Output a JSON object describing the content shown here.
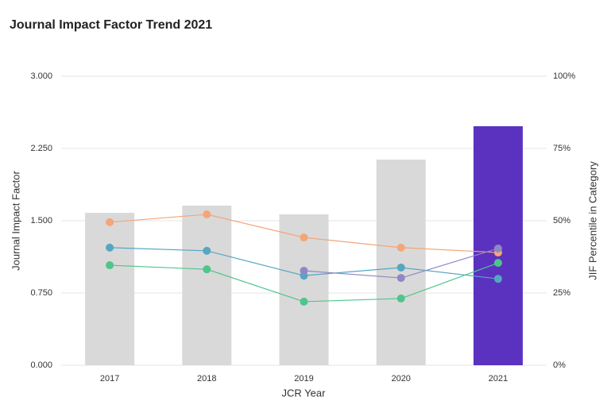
{
  "chart_data": {
    "type": "bar",
    "title": "Journal Impact Factor Trend 2021",
    "x_label": "JCR Year",
    "y_label": "Journal Impact Factor",
    "y2_label": "JIF Percentile in Category",
    "categories": [
      "2017",
      "2018",
      "2019",
      "2020",
      "2021"
    ],
    "values": [
      1.582,
      1.657,
      1.566,
      2.135,
      2.481
    ],
    "colors": [
      "#d9d9d9",
      "#d9d9d9",
      "#d9d9d9",
      "#d9d9d9",
      "#5b31c0"
    ],
    "ylim": [
      0,
      3
    ],
    "yticks": [
      {
        "value": 0,
        "label": "0.000"
      },
      {
        "value": 0.75,
        "label": "0.750"
      },
      {
        "value": 1.5,
        "label": "1.500"
      },
      {
        "value": 2.25,
        "label": "2.250"
      },
      {
        "value": 3,
        "label": "3.000"
      }
    ],
    "y2lim": [
      0,
      100
    ],
    "y2ticks": [
      {
        "value": 0,
        "label": "0%"
      },
      {
        "value": 25,
        "label": "25%"
      },
      {
        "value": 50,
        "label": "50%"
      },
      {
        "value": 75,
        "label": "75%"
      },
      {
        "value": 100,
        "label": "100%"
      }
    ],
    "grid": true,
    "series": [
      {
        "type": "line",
        "axis": "y2",
        "color": "#f4a57a",
        "values": [
          49.5,
          52.2,
          44.2,
          40.7,
          39.0
        ]
      },
      {
        "type": "line",
        "axis": "y2",
        "color": "#55a6c3",
        "values": [
          40.7,
          39.6,
          31.0,
          33.8,
          29.9
        ]
      },
      {
        "type": "line",
        "axis": "y2",
        "color": "#8f88c6",
        "values": [
          null,
          null,
          32.7,
          30.2,
          40.4
        ]
      },
      {
        "type": "line",
        "axis": "y2",
        "color": "#4fc58c",
        "values": [
          34.6,
          33.2,
          22.0,
          23.1,
          35.4
        ]
      }
    ]
  }
}
